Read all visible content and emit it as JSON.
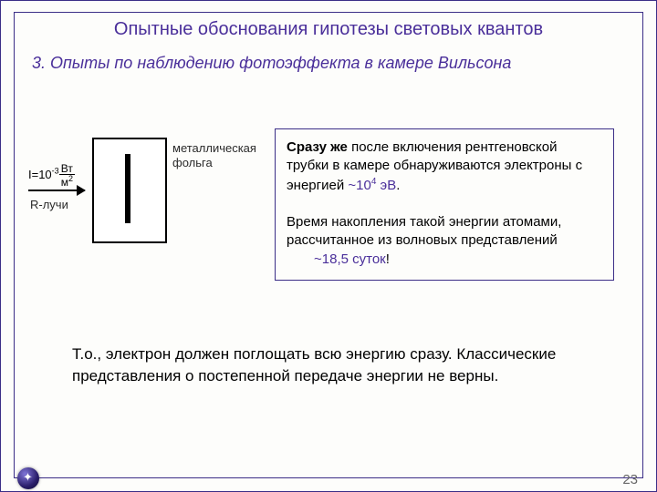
{
  "title": "Опытные обоснования гипотезы световых квантов",
  "subtitle": "3. Опыты по наблюдению фотоэффекта в камере Вильсона",
  "figure": {
    "intensity_prefix": "I=10",
    "intensity_exp": "-3",
    "intensity_num": "Вт",
    "intensity_den": "м",
    "intensity_den_exp": "2",
    "r_label": "R-лучи",
    "foil_label_line1": "металлическая",
    "foil_label_line2": "фольга"
  },
  "textbox": {
    "line1_bold": "Сразу же",
    "line1_rest": " после включения рентгеновской трубки в камере обнаруживаются электроны с энергией ",
    "energy_prefix": "~10",
    "energy_exp": "4",
    "energy_unit": " эВ",
    "period1": ".",
    "para2": "Время накопления такой энергии атомами, рассчитанное из волновых представлений",
    "days": "~18,5 суток",
    "bang": "!"
  },
  "conclusion": "Т.о., электрон должен поглощать всю энергию сразу. Классические представления  о постепенной передаче энергии не верны.",
  "pagenum": "23",
  "colors": {
    "border": "#3b2e87",
    "heading": "#4a2f9a",
    "accent": "#4a2f9a"
  }
}
